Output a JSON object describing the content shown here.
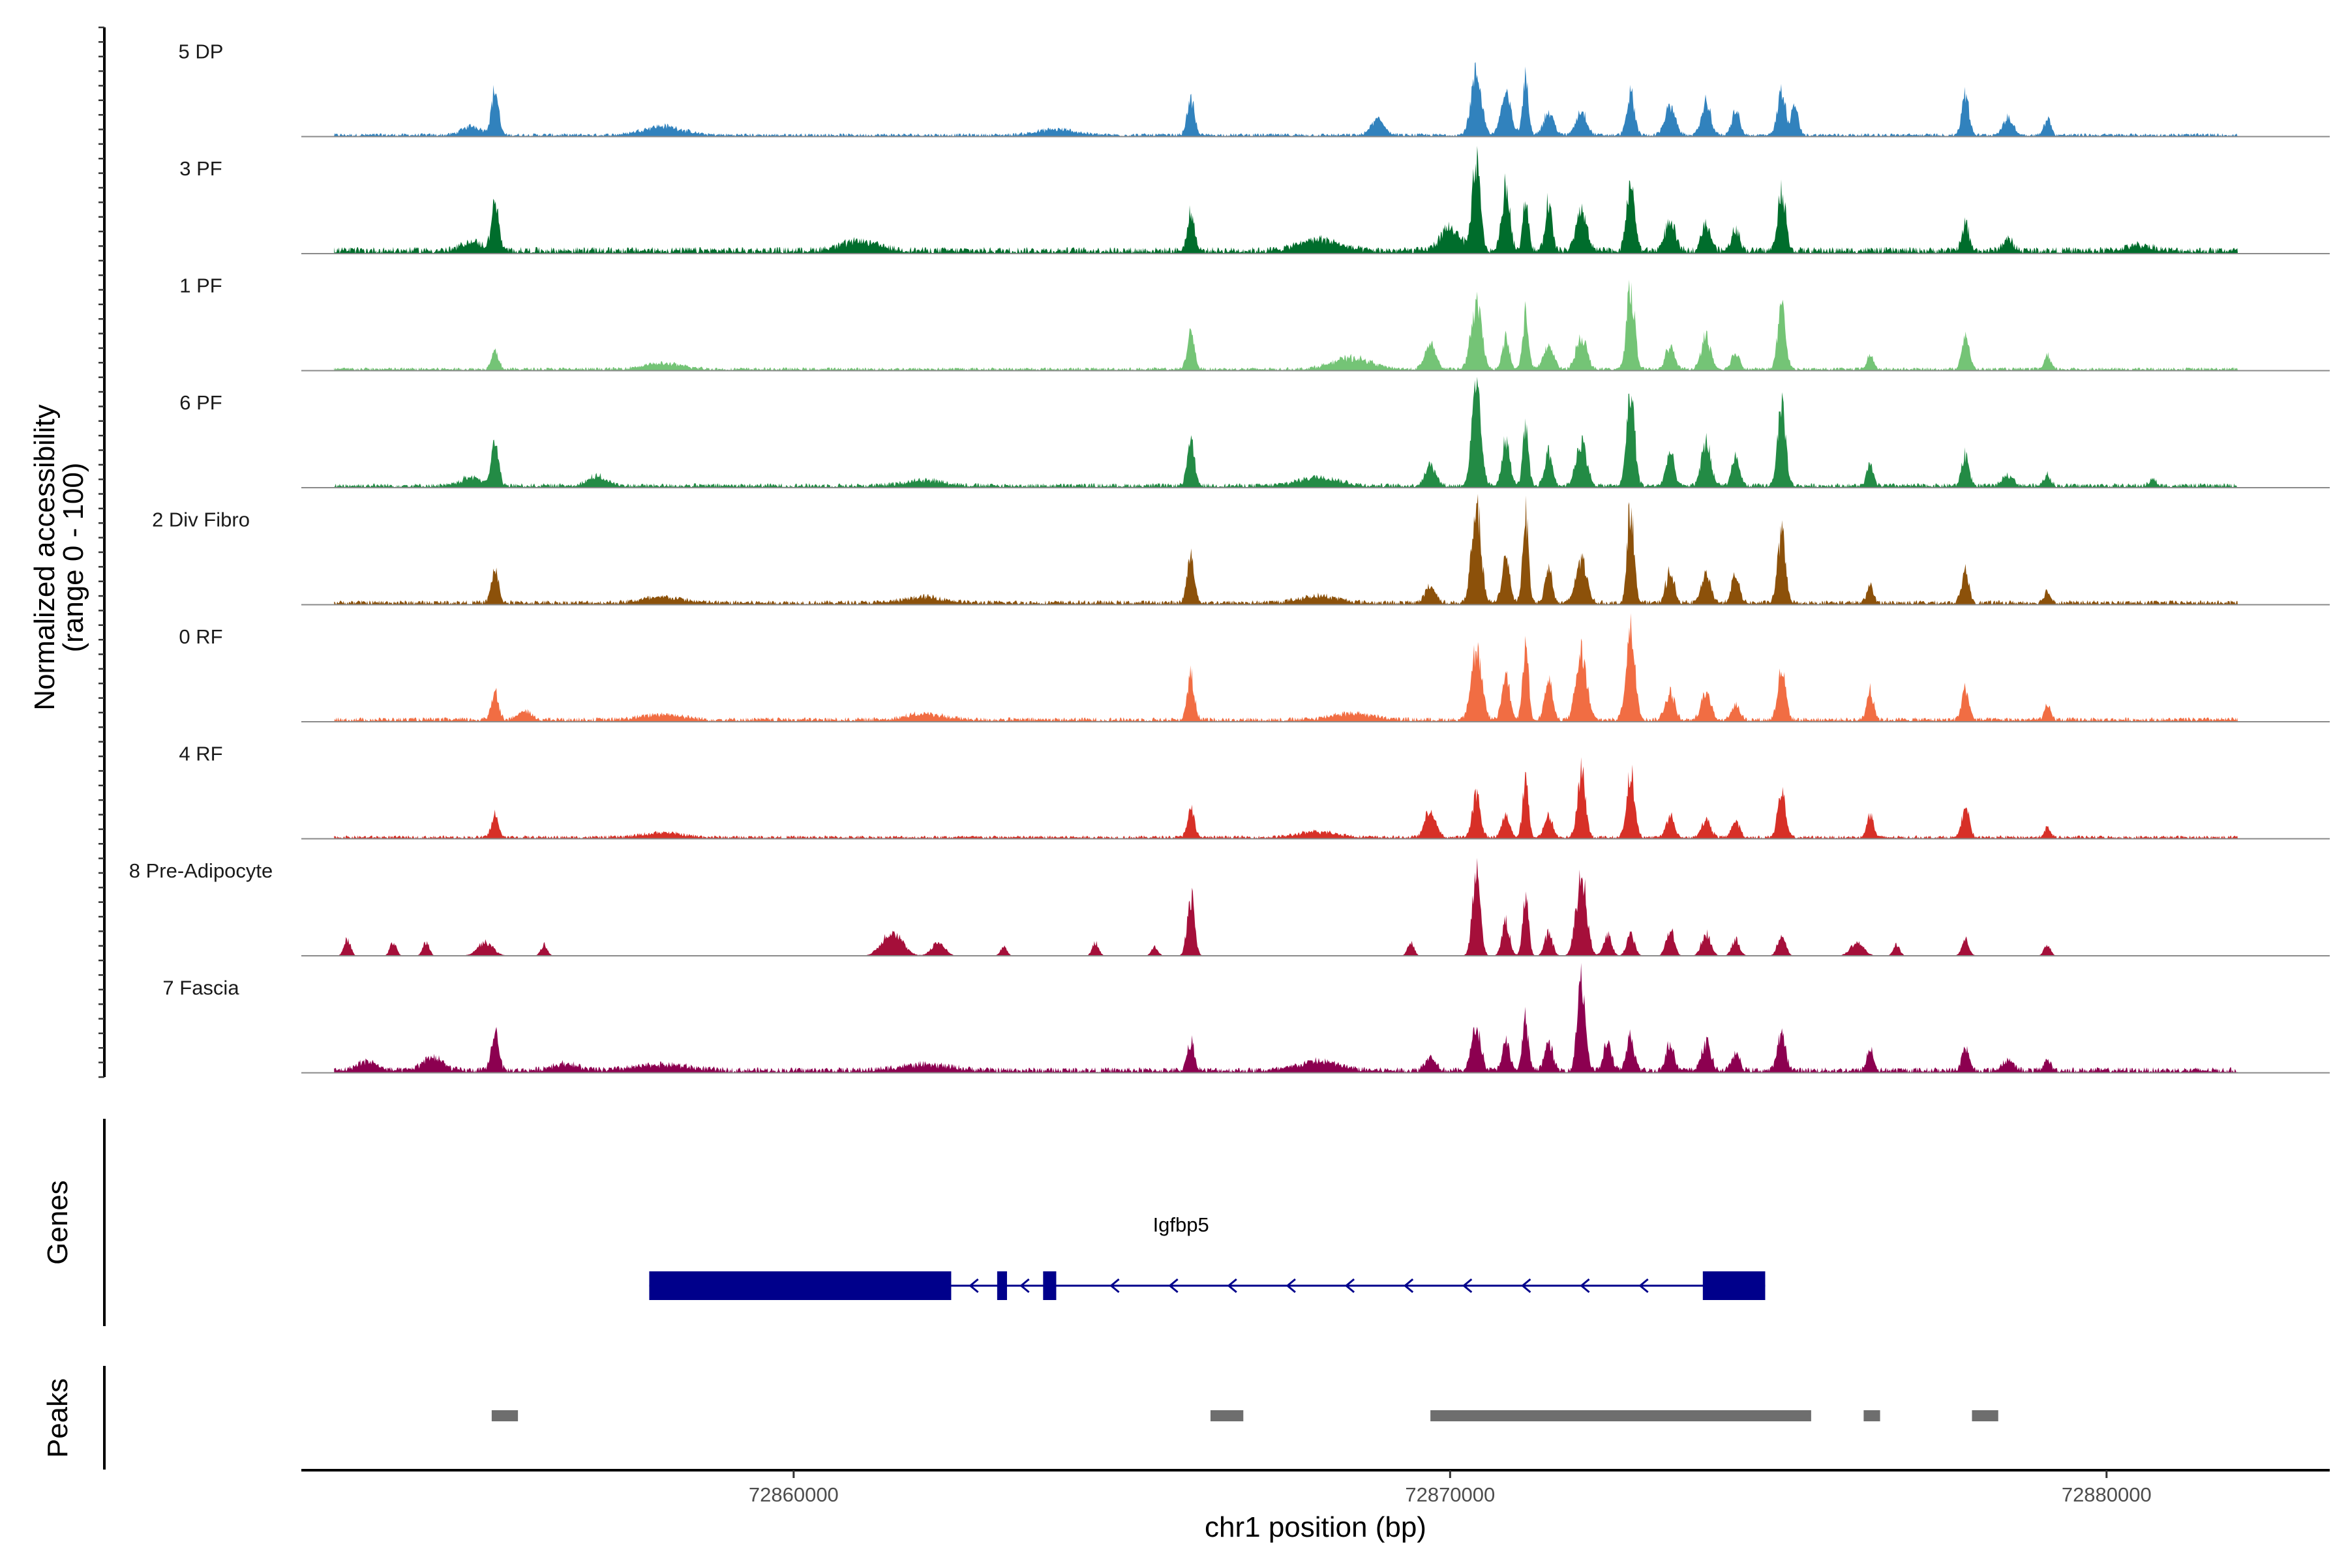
{
  "chart_data": {
    "type": "area",
    "title": "",
    "xlabel": "chr1 position (bp)",
    "ylabel": "Normalized accessibility",
    "ylabel_sub": "(range 0 - 100)",
    "xlim": [
      72852500,
      72883400
    ],
    "xticks": [
      72860000,
      72870000,
      72880000
    ],
    "xtick_labels": [
      "72860000",
      "72870000",
      "72880000"
    ],
    "ylim": [
      0,
      100
    ],
    "tracks": [
      {
        "name": "5 DP",
        "color": "#3182BD",
        "baseline": 3,
        "peaks": [
          [
            72855450,
            40,
            55
          ],
          [
            72855100,
            8,
            150
          ],
          [
            72866050,
            33,
            55
          ],
          [
            72868900,
            14,
            100
          ],
          [
            72870400,
            55,
            80
          ],
          [
            72870850,
            35,
            80
          ],
          [
            72871150,
            50,
            45
          ],
          [
            72871500,
            20,
            80
          ],
          [
            72872000,
            22,
            80
          ],
          [
            72872750,
            37,
            60
          ],
          [
            72873350,
            25,
            80
          ],
          [
            72873900,
            30,
            70
          ],
          [
            72874350,
            22,
            60
          ],
          [
            72875050,
            40,
            60
          ],
          [
            72875250,
            30,
            50
          ],
          [
            72877850,
            37,
            55
          ],
          [
            72878500,
            15,
            80
          ],
          [
            72879100,
            15,
            50
          ],
          [
            72858000,
            8,
            300
          ],
          [
            72864000,
            5,
            300
          ]
        ]
      },
      {
        "name": "3 PF",
        "color": "#006D2C",
        "baseline": 6,
        "peaks": [
          [
            72855450,
            42,
            55
          ],
          [
            72855100,
            8,
            150
          ],
          [
            72866050,
            33,
            55
          ],
          [
            72870400,
            78,
            60
          ],
          [
            72870000,
            20,
            150
          ],
          [
            72870850,
            58,
            60
          ],
          [
            72871150,
            45,
            45
          ],
          [
            72871500,
            45,
            50
          ],
          [
            72872000,
            35,
            80
          ],
          [
            72872750,
            62,
            60
          ],
          [
            72873350,
            25,
            80
          ],
          [
            72873900,
            25,
            70
          ],
          [
            72874350,
            20,
            60
          ],
          [
            72875050,
            55,
            60
          ],
          [
            72877850,
            24,
            55
          ],
          [
            72878500,
            10,
            80
          ],
          [
            72861000,
            8,
            300
          ],
          [
            72868000,
            10,
            300
          ],
          [
            72880500,
            5,
            200
          ]
        ]
      },
      {
        "name": "1 PF",
        "color": "#74C476",
        "baseline": 3,
        "peaks": [
          [
            72855450,
            16,
            55
          ],
          [
            72866050,
            33,
            55
          ],
          [
            72869700,
            25,
            80
          ],
          [
            72870400,
            58,
            80
          ],
          [
            72870850,
            30,
            50
          ],
          [
            72871150,
            50,
            45
          ],
          [
            72871500,
            20,
            80
          ],
          [
            72872000,
            30,
            80
          ],
          [
            72872750,
            75,
            60
          ],
          [
            72873350,
            20,
            70
          ],
          [
            72873900,
            30,
            70
          ],
          [
            72874350,
            15,
            60
          ],
          [
            72875050,
            55,
            60
          ],
          [
            72876400,
            12,
            50
          ],
          [
            72877850,
            32,
            55
          ],
          [
            72879100,
            12,
            50
          ],
          [
            72858000,
            5,
            300
          ],
          [
            72868500,
            10,
            300
          ]
        ]
      },
      {
        "name": "6 PF",
        "color": "#238B45",
        "baseline": 4,
        "peaks": [
          [
            72855450,
            38,
            55
          ],
          [
            72855100,
            8,
            150
          ],
          [
            72857000,
            8,
            150
          ],
          [
            72866050,
            42,
            55
          ],
          [
            72869700,
            20,
            80
          ],
          [
            72870400,
            85,
            70
          ],
          [
            72870850,
            40,
            60
          ],
          [
            72871150,
            50,
            45
          ],
          [
            72871500,
            30,
            60
          ],
          [
            72872000,
            40,
            80
          ],
          [
            72872750,
            85,
            60
          ],
          [
            72873350,
            30,
            60
          ],
          [
            72873900,
            40,
            70
          ],
          [
            72874350,
            25,
            60
          ],
          [
            72875050,
            70,
            60
          ],
          [
            72876400,
            20,
            50
          ],
          [
            72877850,
            28,
            55
          ],
          [
            72878500,
            10,
            80
          ],
          [
            72879100,
            10,
            50
          ],
          [
            72880700,
            6,
            50
          ],
          [
            72868000,
            8,
            300
          ],
          [
            72862000,
            5,
            300
          ]
        ]
      },
      {
        "name": "2 Div Fibro",
        "color": "#8C510A",
        "baseline": 4,
        "peaks": [
          [
            72855450,
            28,
            55
          ],
          [
            72866050,
            42,
            55
          ],
          [
            72869700,
            15,
            80
          ],
          [
            72870400,
            88,
            70
          ],
          [
            72870850,
            40,
            60
          ],
          [
            72871150,
            80,
            45
          ],
          [
            72871500,
            35,
            50
          ],
          [
            72872000,
            40,
            80
          ],
          [
            72872750,
            88,
            50
          ],
          [
            72873350,
            30,
            60
          ],
          [
            72873900,
            25,
            70
          ],
          [
            72874350,
            25,
            60
          ],
          [
            72875050,
            62,
            60
          ],
          [
            72876400,
            15,
            50
          ],
          [
            72877850,
            28,
            55
          ],
          [
            72879100,
            10,
            50
          ],
          [
            72858000,
            5,
            300
          ],
          [
            72862000,
            5,
            300
          ],
          [
            72868000,
            6,
            300
          ]
        ]
      },
      {
        "name": "0 RF",
        "color": "#F16D43",
        "baseline": 4,
        "peaks": [
          [
            72855450,
            25,
            55
          ],
          [
            72855900,
            8,
            100
          ],
          [
            72866050,
            38,
            55
          ],
          [
            72870400,
            62,
            80
          ],
          [
            72870850,
            40,
            60
          ],
          [
            72871150,
            68,
            45
          ],
          [
            72871500,
            35,
            60
          ],
          [
            72872000,
            60,
            80
          ],
          [
            72872750,
            80,
            70
          ],
          [
            72873350,
            25,
            70
          ],
          [
            72873900,
            25,
            70
          ],
          [
            72874350,
            15,
            60
          ],
          [
            72875050,
            45,
            60
          ],
          [
            72876400,
            28,
            50
          ],
          [
            72877850,
            28,
            55
          ],
          [
            72879100,
            12,
            50
          ],
          [
            72858000,
            5,
            300
          ],
          [
            72862000,
            5,
            300
          ],
          [
            72868500,
            6,
            300
          ]
        ]
      },
      {
        "name": "4 RF",
        "color": "#D73027",
        "baseline": 3,
        "peaks": [
          [
            72855450,
            20,
            55
          ],
          [
            72866050,
            25,
            55
          ],
          [
            72869700,
            25,
            80
          ],
          [
            72870400,
            40,
            60
          ],
          [
            72870850,
            20,
            60
          ],
          [
            72871150,
            50,
            45
          ],
          [
            72871500,
            20,
            60
          ],
          [
            72872000,
            60,
            60
          ],
          [
            72872750,
            58,
            60
          ],
          [
            72873350,
            20,
            60
          ],
          [
            72873900,
            15,
            70
          ],
          [
            72874350,
            15,
            60
          ],
          [
            72875050,
            40,
            60
          ],
          [
            72876400,
            20,
            50
          ],
          [
            72877850,
            28,
            55
          ],
          [
            72879100,
            8,
            50
          ],
          [
            72858000,
            4,
            300
          ],
          [
            72868000,
            5,
            300
          ]
        ]
      },
      {
        "name": "8 Pre-Adipocyte",
        "color": "#A50F3A",
        "baseline": 0,
        "peaks": [
          [
            72853200,
            15,
            50
          ],
          [
            72853900,
            12,
            50
          ],
          [
            72854400,
            12,
            50
          ],
          [
            72855300,
            12,
            120
          ],
          [
            72856200,
            10,
            50
          ],
          [
            72861500,
            22,
            150
          ],
          [
            72862200,
            12,
            100
          ],
          [
            72863200,
            8,
            50
          ],
          [
            72864600,
            12,
            50
          ],
          [
            72865500,
            8,
            50
          ],
          [
            72866050,
            55,
            55
          ],
          [
            72869400,
            12,
            50
          ],
          [
            72870400,
            75,
            60
          ],
          [
            72870850,
            30,
            60
          ],
          [
            72871150,
            55,
            45
          ],
          [
            72871500,
            20,
            60
          ],
          [
            72872000,
            72,
            80
          ],
          [
            72872400,
            20,
            60
          ],
          [
            72872750,
            20,
            60
          ],
          [
            72873350,
            25,
            60
          ],
          [
            72873900,
            20,
            70
          ],
          [
            72874350,
            15,
            60
          ],
          [
            72875050,
            20,
            60
          ],
          [
            72876200,
            12,
            100
          ],
          [
            72876800,
            10,
            50
          ],
          [
            72877850,
            15,
            55
          ],
          [
            72879100,
            10,
            50
          ]
        ]
      },
      {
        "name": "7 Fascia",
        "color": "#8C0050",
        "baseline": 5,
        "peaks": [
          [
            72855450,
            35,
            55
          ],
          [
            72853500,
            8,
            150
          ],
          [
            72854500,
            12,
            150
          ],
          [
            72856500,
            6,
            200
          ],
          [
            72866050,
            25,
            55
          ],
          [
            72869700,
            12,
            80
          ],
          [
            72870400,
            40,
            70
          ],
          [
            72870850,
            25,
            60
          ],
          [
            72871150,
            45,
            45
          ],
          [
            72871500,
            25,
            60
          ],
          [
            72872000,
            82,
            60
          ],
          [
            72872400,
            25,
            60
          ],
          [
            72872750,
            30,
            60
          ],
          [
            72873350,
            25,
            60
          ],
          [
            72873900,
            25,
            70
          ],
          [
            72874350,
            15,
            60
          ],
          [
            72875050,
            35,
            60
          ],
          [
            72876400,
            20,
            50
          ],
          [
            72877850,
            20,
            55
          ],
          [
            72878500,
            10,
            80
          ],
          [
            72879100,
            10,
            50
          ],
          [
            72858000,
            5,
            400
          ],
          [
            72862000,
            5,
            400
          ],
          [
            72868000,
            8,
            300
          ]
        ]
      }
    ],
    "gene_track": {
      "label": "Genes",
      "gene_name": "Igfbp5",
      "strand": "-",
      "start": 72857800,
      "end": 72874800,
      "color": "#00008B",
      "exons": [
        [
          72857800,
          72862400
        ],
        [
          72863100,
          72863250
        ],
        [
          72863800,
          72864000
        ],
        [
          72873850,
          72874800
        ]
      ]
    },
    "peak_track": {
      "label": "Peaks",
      "color": "#6E6E6E",
      "regions": [
        [
          72855400,
          72855800
        ],
        [
          72866350,
          72866850
        ],
        [
          72869700,
          72875500
        ],
        [
          72876300,
          72876550
        ],
        [
          72877950,
          72878350
        ]
      ]
    }
  }
}
